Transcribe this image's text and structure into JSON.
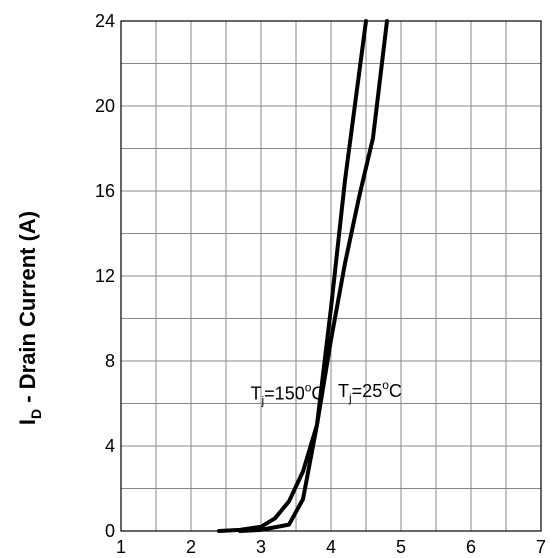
{
  "chart_data": {
    "type": "line",
    "title": "",
    "xlabel": "",
    "ylabel_main": "I",
    "ylabel_sub": "D",
    "ylabel_rest": " - Drain Current (A)",
    "xlim": [
      1,
      7
    ],
    "ylim": [
      0,
      24
    ],
    "x_ticks": [
      "1",
      "2",
      "3",
      "4",
      "5",
      "6",
      "7"
    ],
    "y_ticks": [
      "0",
      "4",
      "8",
      "12",
      "16",
      "20",
      "24"
    ],
    "x_minor_step": 0.5,
    "y_minor_step": 2,
    "grid": true,
    "series": [
      {
        "name": "Tj=150°C",
        "x": [
          2.4,
          2.7,
          3.0,
          3.2,
          3.4,
          3.6,
          3.8,
          4.0,
          4.2,
          4.4,
          4.6,
          4.8
        ],
        "y": [
          0.0,
          0.05,
          0.2,
          0.6,
          1.4,
          2.8,
          5.0,
          9.0,
          12.6,
          15.7,
          18.5,
          24.0
        ]
      },
      {
        "name": "Tj=25°C",
        "x": [
          2.7,
          3.0,
          3.4,
          3.6,
          3.8,
          4.0,
          4.2,
          4.4,
          4.5
        ],
        "y": [
          0.0,
          0.05,
          0.3,
          1.5,
          5.0,
          10.5,
          16.5,
          21.5,
          24.0
        ]
      }
    ],
    "annotations": [
      {
        "T": "T",
        "sub": "j",
        "rest": "=150",
        "sup": "o",
        "unit": "C",
        "x": 2.85,
        "y": 6.2
      },
      {
        "T": "T",
        "sub": "j",
        "rest": "=25",
        "sup": "o",
        "unit": "C",
        "x": 4.1,
        "y": 6.3
      }
    ]
  }
}
